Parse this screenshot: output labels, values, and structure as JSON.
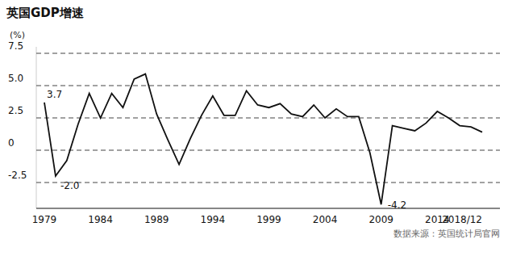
{
  "chart_data": {
    "type": "line",
    "title": "英国GDP增速",
    "y_label": "(%)",
    "source": "数据来源：英国统计局官网",
    "categories": [
      "1979",
      null,
      null,
      null,
      null,
      "1984",
      null,
      null,
      null,
      null,
      "1989",
      null,
      null,
      null,
      null,
      "1994",
      null,
      null,
      null,
      null,
      "1999",
      null,
      null,
      null,
      null,
      "2004",
      null,
      null,
      null,
      null,
      "2009",
      null,
      null,
      null,
      null,
      "2014",
      null,
      null,
      null,
      "2018/12"
    ],
    "values": [
      3.7,
      -2.0,
      -0.8,
      2.0,
      4.4,
      2.5,
      4.4,
      3.3,
      5.5,
      5.9,
      2.8,
      0.8,
      -1.1,
      0.9,
      2.7,
      4.2,
      2.7,
      2.7,
      4.6,
      3.5,
      3.3,
      3.6,
      2.8,
      2.6,
      3.5,
      2.5,
      3.2,
      2.6,
      2.6,
      -0.2,
      -4.2,
      1.9,
      1.7,
      1.5,
      2.1,
      3.0,
      2.5,
      1.9,
      1.8,
      1.4
    ],
    "color": "#111111",
    "ylim": [
      -4.5,
      8
    ],
    "yticks": [
      {
        "value": 7.5,
        "label": "7.5"
      },
      {
        "value": 5,
        "label": "5.0"
      },
      2.5,
      0,
      -2.5
    ],
    "grid": true,
    "line_style": "solid",
    "annotations": [
      {
        "text": "3.7",
        "index": 0
      },
      {
        "text": "-2.0",
        "index": 1
      },
      {
        "text": "-4.2",
        "index": 30
      }
    ]
  }
}
